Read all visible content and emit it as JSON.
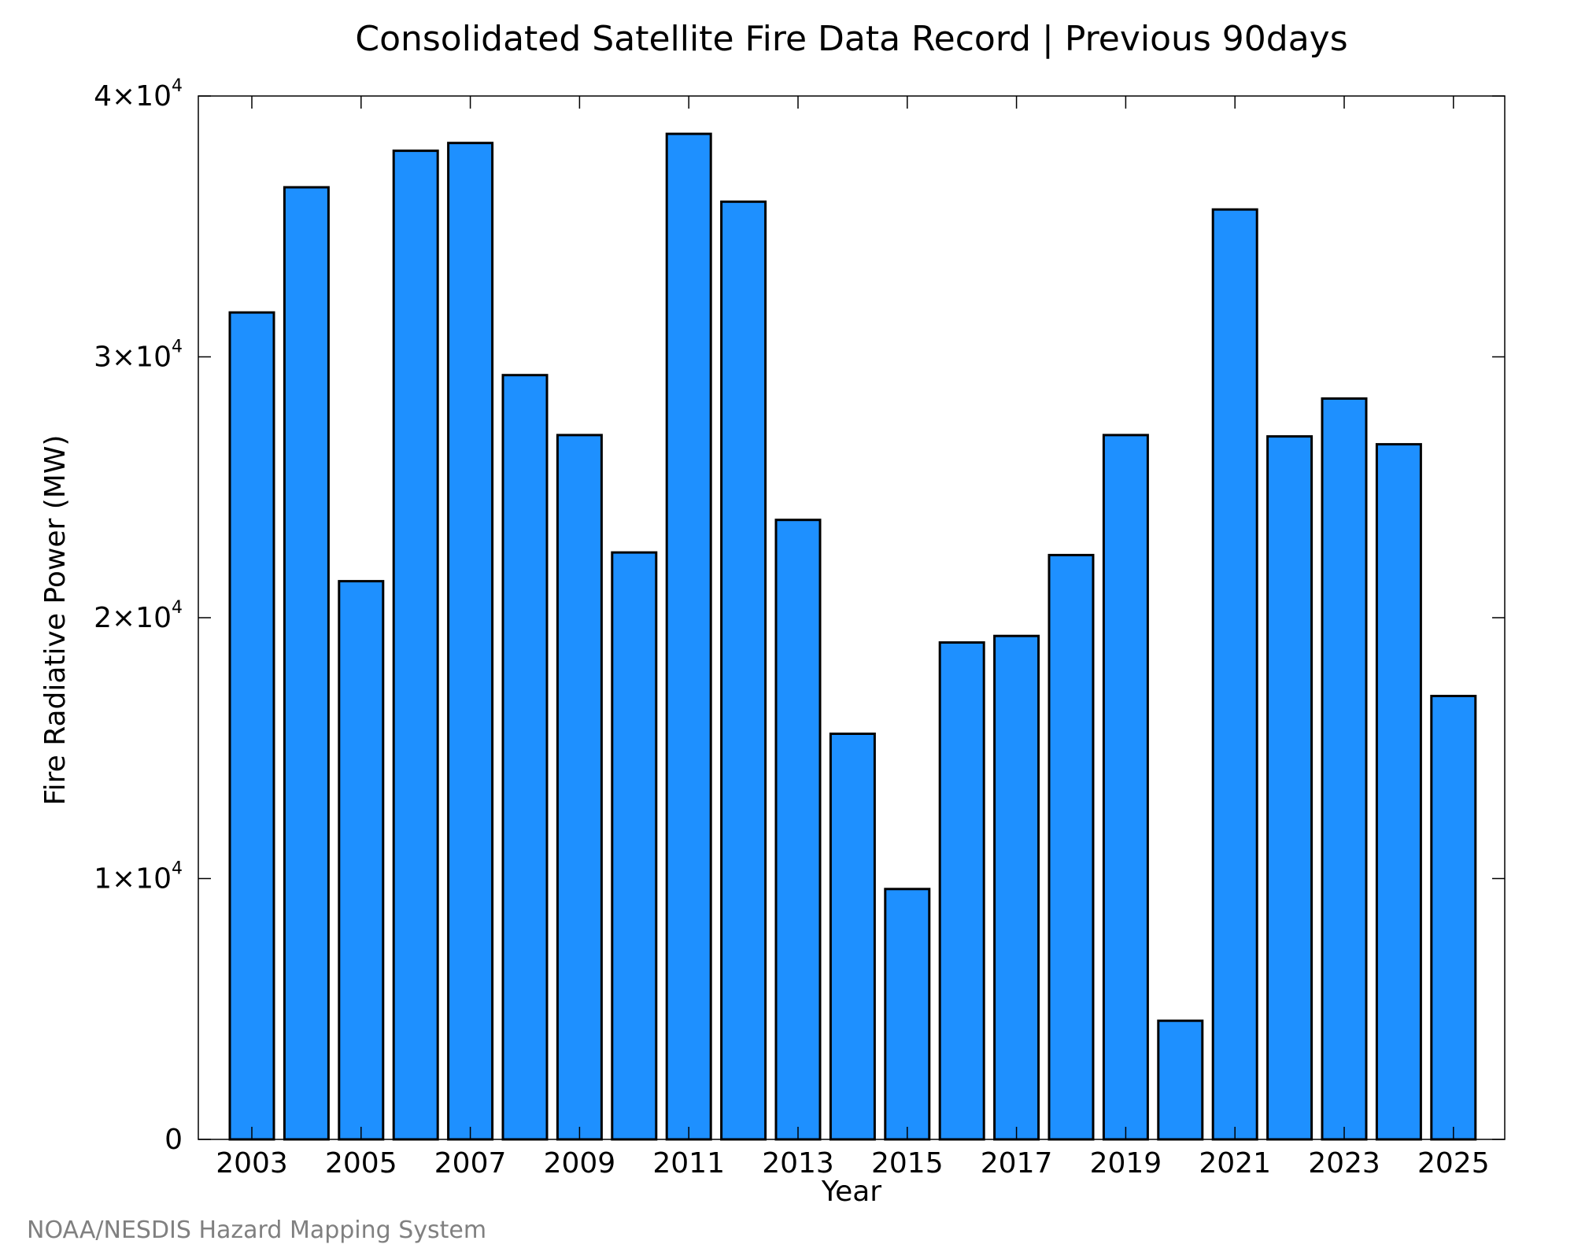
{
  "chart_data": {
    "type": "bar",
    "title": "Consolidated Satellite Fire Data Record | Previous 90days",
    "xlabel": "Year",
    "ylabel": "Fire Radiative Power (MW)",
    "ylim": [
      0,
      40000
    ],
    "grid": false,
    "categories": [
      "2003",
      "2004",
      "2005",
      "2006",
      "2007",
      "2008",
      "2009",
      "2010",
      "2011",
      "2012",
      "2013",
      "2014",
      "2015",
      "2016",
      "2017",
      "2018",
      "2019",
      "2020",
      "2021",
      "2022",
      "2023",
      "2024",
      "2025"
    ],
    "values": [
      31700,
      36500,
      21400,
      37900,
      38200,
      29300,
      27000,
      22500,
      38550,
      35950,
      23750,
      15550,
      9600,
      19050,
      19300,
      22400,
      27000,
      4550,
      35650,
      26950,
      28400,
      26650,
      17000
    ],
    "xticks": [
      "2003",
      "2005",
      "2007",
      "2009",
      "2011",
      "2013",
      "2015",
      "2017",
      "2019",
      "2021",
      "2023",
      "2025"
    ],
    "yticks": [
      {
        "value": 0,
        "mantissa": "0",
        "exponent": ""
      },
      {
        "value": 10000,
        "mantissa": "1×10",
        "exponent": "4"
      },
      {
        "value": 20000,
        "mantissa": "2×10",
        "exponent": "4"
      },
      {
        "value": 30000,
        "mantissa": "3×10",
        "exponent": "4"
      },
      {
        "value": 40000,
        "mantissa": "4×10",
        "exponent": "4"
      }
    ],
    "bar_color": "#1e90ff",
    "edge_color": "#000000"
  },
  "credit": "NOAA/NESDIS Hazard Mapping System"
}
